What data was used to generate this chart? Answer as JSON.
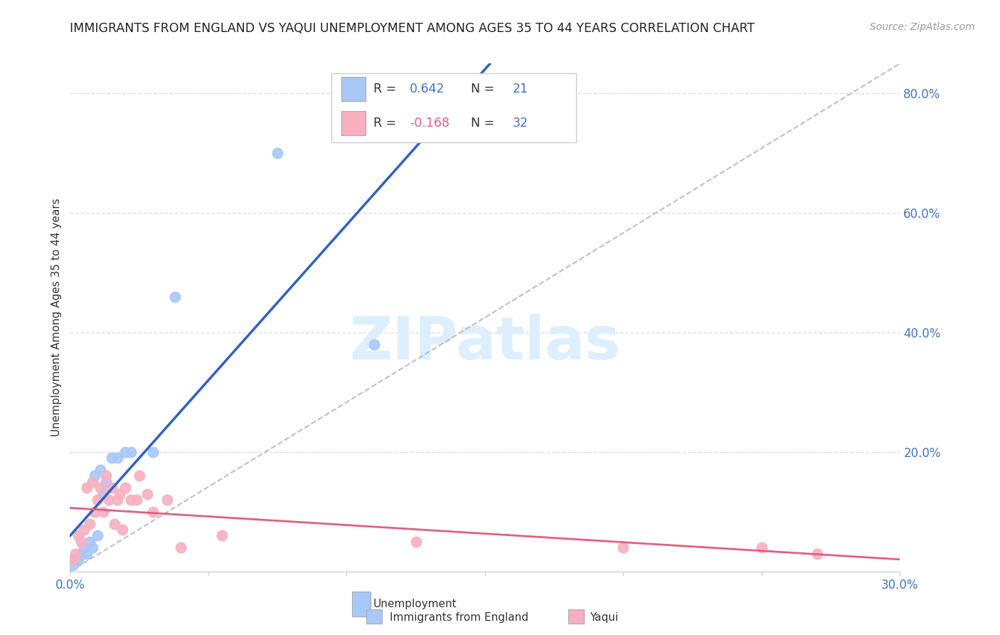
{
  "title": "IMMIGRANTS FROM ENGLAND VS YAQUI UNEMPLOYMENT AMONG AGES 35 TO 44 YEARS CORRELATION CHART",
  "source": "Source: ZipAtlas.com",
  "ylabel": "Unemployment Among Ages 35 to 44 years",
  "xmin": 0.0,
  "xmax": 0.3,
  "ymin": 0.0,
  "ymax": 0.85,
  "x_ticks": [
    0.0,
    0.05,
    0.1,
    0.15,
    0.2,
    0.25,
    0.3
  ],
  "x_tick_labels": [
    "0.0%",
    "",
    "",
    "",
    "",
    "",
    "30.0%"
  ],
  "y_ticks": [
    0.0,
    0.2,
    0.4,
    0.6,
    0.8
  ],
  "y_tick_labels": [
    "",
    "20.0%",
    "40.0%",
    "60.0%",
    "80.0%"
  ],
  "england_color": "#a8c8f8",
  "yaqui_color": "#f8b0c0",
  "england_line_color": "#3060c0",
  "yaqui_line_color": "#e06080",
  "diagonal_color": "#c0c0c0",
  "watermark_text": "ZIPatlas",
  "watermark_color": "#ddeeff",
  "england_R": 0.642,
  "england_N": 21,
  "yaqui_R": -0.168,
  "yaqui_N": 32,
  "england_scatter_x": [
    0.001,
    0.002,
    0.003,
    0.004,
    0.005,
    0.006,
    0.007,
    0.008,
    0.009,
    0.01,
    0.011,
    0.012,
    0.013,
    0.015,
    0.017,
    0.02,
    0.022,
    0.03,
    0.038,
    0.075,
    0.11
  ],
  "england_scatter_y": [
    0.01,
    0.02,
    0.02,
    0.03,
    0.04,
    0.03,
    0.05,
    0.04,
    0.16,
    0.06,
    0.17,
    0.13,
    0.15,
    0.19,
    0.19,
    0.2,
    0.2,
    0.2,
    0.46,
    0.7,
    0.38
  ],
  "yaqui_scatter_x": [
    0.001,
    0.002,
    0.003,
    0.004,
    0.005,
    0.006,
    0.007,
    0.008,
    0.009,
    0.01,
    0.011,
    0.012,
    0.013,
    0.014,
    0.015,
    0.016,
    0.017,
    0.018,
    0.019,
    0.02,
    0.022,
    0.024,
    0.025,
    0.028,
    0.03,
    0.035,
    0.04,
    0.055,
    0.125,
    0.2,
    0.25,
    0.27
  ],
  "yaqui_scatter_y": [
    0.02,
    0.03,
    0.06,
    0.05,
    0.07,
    0.14,
    0.08,
    0.15,
    0.1,
    0.12,
    0.14,
    0.1,
    0.16,
    0.12,
    0.14,
    0.08,
    0.12,
    0.13,
    0.07,
    0.14,
    0.12,
    0.12,
    0.16,
    0.13,
    0.1,
    0.12,
    0.04,
    0.06,
    0.05,
    0.04,
    0.04,
    0.03
  ],
  "background_color": "#ffffff",
  "grid_color": "#dddddd",
  "tick_color": "#4472c4",
  "label_color": "#333333",
  "legend_r_color": "#333333",
  "legend_val_color": "#4472c4",
  "legend_neg_color": "#e06080"
}
